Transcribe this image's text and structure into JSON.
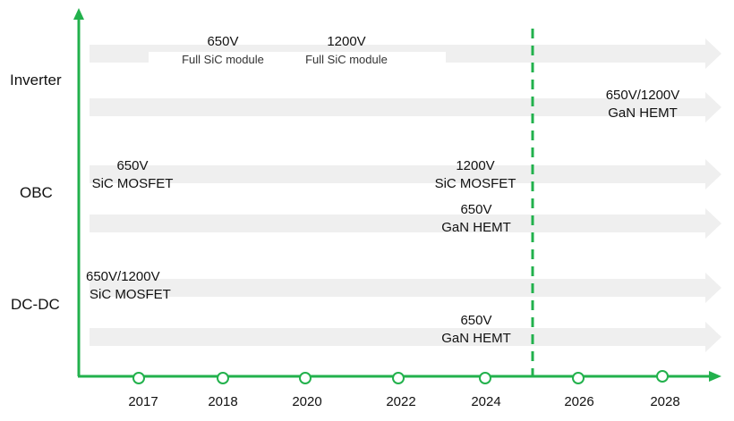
{
  "colors": {
    "axis": "#22b14c",
    "lane": "#efefef",
    "text": "#111111"
  },
  "categories": [
    "Inverter",
    "OBC",
    "DC-DC"
  ],
  "years": [
    "2017",
    "2018",
    "2020",
    "2022",
    "2024",
    "2026",
    "2028"
  ],
  "labels": {
    "inv_650": {
      "voltage": "650V",
      "device": "Full SiC module"
    },
    "inv_1200": {
      "voltage": "1200V",
      "device": "Full SiC module"
    },
    "inv_gan": {
      "voltage": "650V/1200V",
      "device": "GaN HEMT"
    },
    "obc_sic650": {
      "voltage": "650V",
      "device": "SiC MOSFET"
    },
    "obc_sic1200": {
      "voltage": "1200V",
      "device": "SiC MOSFET"
    },
    "obc_gan650": {
      "voltage": "650V",
      "device": "GaN HEMT"
    },
    "dcdc_sic": {
      "voltage": "650V/1200V",
      "device": "SiC MOSFET"
    },
    "dcdc_gan": {
      "voltage": "650V",
      "device": "GaN HEMT"
    }
  }
}
